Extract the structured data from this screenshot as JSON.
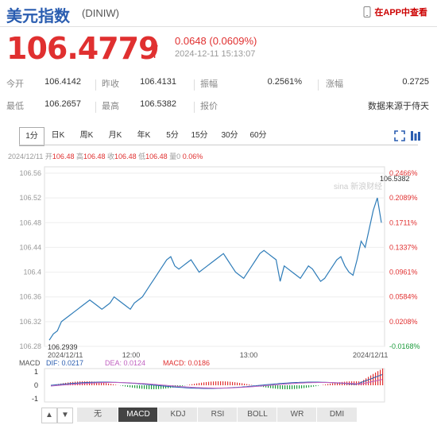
{
  "header": {
    "title": "美元指数",
    "code": "(DINIW)",
    "app_label": "在APP中查看",
    "app_icon": "phone-icon"
  },
  "quote": {
    "price": "106.4779",
    "arrow": "↑",
    "change": "0.0648 (0.0609%)",
    "time": "2024-12-11 15:13:07"
  },
  "stats": {
    "row1": [
      {
        "label": "今开",
        "value": "106.4142"
      },
      {
        "label": "昨收",
        "value": "106.4131"
      },
      {
        "label": "振幅",
        "value": "0.2561%"
      },
      {
        "label": "涨幅",
        "value": "0.2725"
      }
    ],
    "row2": [
      {
        "label": "最低",
        "value": "106.2657"
      },
      {
        "label": "最高",
        "value": "106.5382"
      },
      {
        "label": "报价",
        "value": ""
      },
      {
        "label": "",
        "value": "数据来源于侍天"
      }
    ]
  },
  "tabs": [
    "1分",
    "日K",
    "周K",
    "月K",
    "年K",
    "5分",
    "15分",
    "30分",
    "60分"
  ],
  "tab_icons": [
    "fullscreen-icon",
    "settings-icon"
  ],
  "ohlc": {
    "date": "2024/12/11",
    "open_label": "开",
    "open": "106.48",
    "high_label": "高",
    "high": "106.48",
    "close_label": "收",
    "close": "106.48",
    "low_label": "低",
    "low": "106.48",
    "vol_label": "量",
    "vol": "0",
    "pct": "0.06%"
  },
  "chart_data": {
    "type": "line",
    "x_labels": [
      "2024/12/11",
      "12:00",
      "13:00",
      "2024/12/11"
    ],
    "y_ticks": [
      "106.56",
      "106.52",
      "106.48",
      "106.44",
      "106.4",
      "106.36",
      "106.32",
      "106.28"
    ],
    "y_range": [
      106.28,
      106.56
    ],
    "pct_ticks": [
      "0.2466%",
      "0.2089%",
      "0.1711%",
      "0.1337%",
      "0.0961%",
      "0.0584%",
      "0.0208%",
      "-0.0168%"
    ],
    "high_label": "106.5382",
    "low_label": "106.2939",
    "watermark": "sina 新浪财经",
    "series": [
      {
        "values": [
          106.29,
          106.3,
          106.305,
          106.32,
          106.325,
          106.33,
          106.335,
          106.34,
          106.345,
          106.35,
          106.355,
          106.35,
          106.345,
          106.34,
          106.345,
          106.35,
          106.36,
          106.355,
          106.35,
          106.345,
          106.34,
          106.35,
          106.355,
          106.36,
          106.37,
          106.38,
          106.39,
          106.4,
          106.41,
          106.42,
          106.425,
          106.41,
          106.405,
          106.41,
          106.415,
          106.42,
          106.41,
          106.4,
          106.405,
          106.41,
          106.415,
          106.42,
          106.425,
          106.43,
          106.42,
          106.41,
          106.4,
          106.395,
          106.39,
          106.4,
          106.41,
          106.42,
          106.43,
          106.435,
          106.43,
          106.425,
          106.42,
          106.385,
          106.41,
          106.405,
          106.4,
          106.395,
          106.39,
          106.4,
          106.41,
          106.405,
          106.395,
          106.385,
          106.39,
          106.4,
          106.41,
          106.42,
          106.425,
          106.41,
          106.4,
          106.395,
          106.42,
          106.45,
          106.44,
          106.47,
          106.5,
          106.52,
          106.48
        ]
      }
    ],
    "macd": {
      "label": "MACD",
      "dif_label": "DIF: 0.0217",
      "dea_label": "DEA: 0.0124",
      "macd_label": "MACD: 0.0186",
      "y_ticks": [
        "1",
        "0",
        "-1"
      ]
    }
  },
  "bottom_bar": {
    "nav": [
      "▲",
      "▼"
    ],
    "indicators": [
      "无",
      "MACD",
      "KDJ",
      "RSI",
      "BOLL",
      "WR",
      "DMI"
    ],
    "active": "MACD"
  }
}
